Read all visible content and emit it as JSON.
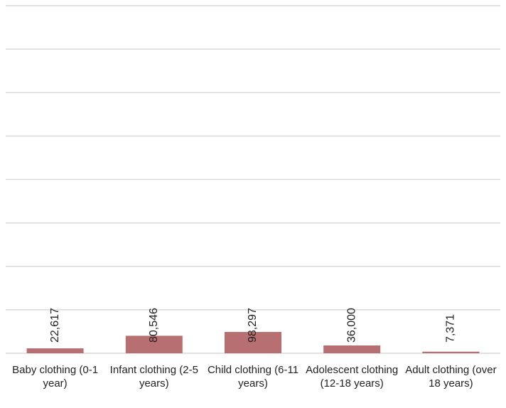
{
  "chart_data": {
    "type": "bar",
    "categories": [
      "Baby clothing (0-1 year)",
      "Infant clothing (2-5 years)",
      "Child clothing (6-11 years)",
      "Adolescent clothing (12-18 years)",
      "Adult clothing (over 18 years)"
    ],
    "values": [
      22617,
      80546,
      98297,
      36000,
      7371
    ],
    "value_labels": [
      "22,617",
      "80,546",
      "98,297",
      "36,000",
      "7,371"
    ],
    "color": "#b86f71",
    "ylim": [
      0,
      1600000
    ],
    "yticks": [
      0,
      200000,
      400000,
      600000,
      800000,
      1000000,
      1200000,
      1400000,
      1600000
    ],
    "grid": true
  }
}
